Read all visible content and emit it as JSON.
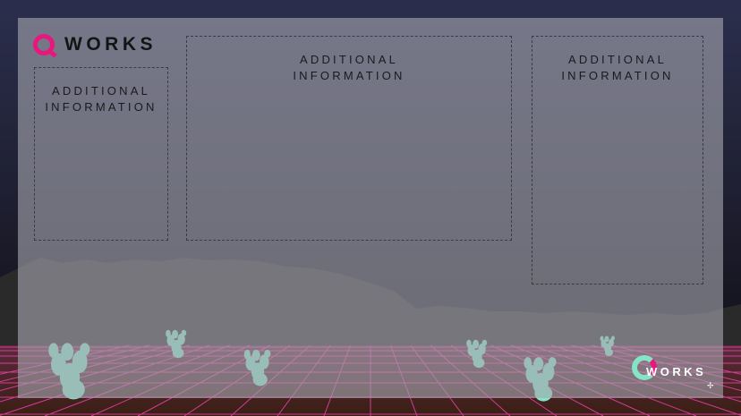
{
  "brand": {
    "logo_text": "WORKS",
    "accent_color": "#e8177d",
    "secondary_color": "#86e4c6"
  },
  "panels": {
    "left_label": "ADDITIONAL\nINFORMATION",
    "center_label": "ADDITIONAL\nINFORMATION",
    "right_label": "ADDITIONAL\nINFORMATION"
  },
  "colors": {
    "sky_top": "#2b2f4d",
    "sky_bottom": "#0f0f14",
    "mountain": "#2a2a2a",
    "grid_line": "#e23fa6",
    "ground": "#3d2118"
  }
}
